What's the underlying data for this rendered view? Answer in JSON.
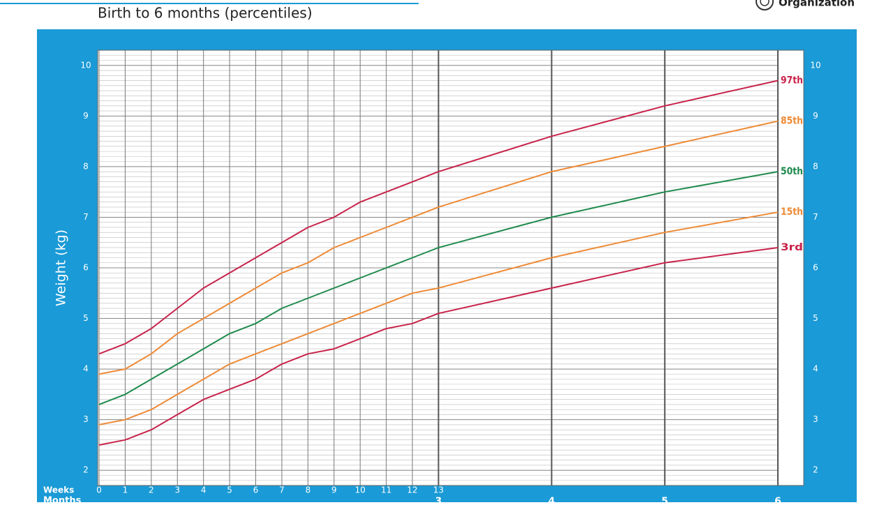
{
  "header": {
    "title": "Birth to 6 months (percentiles)",
    "organization": "Organization"
  },
  "chart_data": {
    "type": "line",
    "ylabel": "Weight (kg)",
    "x_week_label": "Weeks",
    "x_month_label": "Months",
    "x": [
      0,
      1,
      2,
      3,
      4,
      5,
      6,
      7,
      8,
      9,
      10,
      11,
      12,
      13,
      17.333,
      21.667,
      26
    ],
    "xlim": [
      0,
      26
    ],
    "xticks": [
      0,
      1,
      2,
      3,
      4,
      5,
      6,
      7,
      8,
      9,
      10,
      11,
      12,
      13
    ],
    "month_ticks": [
      {
        "value": 13,
        "label": "3"
      },
      {
        "value": 17.333,
        "label": "4"
      },
      {
        "value": 21.667,
        "label": "5"
      },
      {
        "value": 26,
        "label": "6"
      }
    ],
    "ylim": [
      1.7,
      10.3
    ],
    "yticks": [
      2,
      3,
      4,
      5,
      6,
      7,
      8,
      9,
      10
    ],
    "minor_grid_step": 0.1,
    "grid": true,
    "series": [
      {
        "name": "97th",
        "color": "#c8234a",
        "values": [
          4.3,
          4.5,
          4.8,
          5.2,
          5.6,
          5.9,
          6.2,
          6.5,
          6.8,
          7.0,
          7.3,
          7.5,
          7.7,
          7.9,
          8.6,
          9.2,
          9.7
        ]
      },
      {
        "name": "85th",
        "color": "#ee8a35",
        "values": [
          3.9,
          4.0,
          4.3,
          4.7,
          5.0,
          5.3,
          5.6,
          5.9,
          6.1,
          6.4,
          6.6,
          6.8,
          7.0,
          7.2,
          7.9,
          8.4,
          8.9
        ]
      },
      {
        "name": "50th",
        "color": "#1e8a4c",
        "values": [
          3.3,
          3.5,
          3.8,
          4.1,
          4.4,
          4.7,
          4.9,
          5.2,
          5.4,
          5.6,
          5.8,
          6.0,
          6.2,
          6.4,
          7.0,
          7.5,
          7.9
        ]
      },
      {
        "name": "15th",
        "color": "#ee8a35",
        "values": [
          2.9,
          3.0,
          3.2,
          3.5,
          3.8,
          4.1,
          4.3,
          4.5,
          4.7,
          4.9,
          5.1,
          5.3,
          5.5,
          5.6,
          6.2,
          6.7,
          7.1
        ]
      },
      {
        "name": "3rd",
        "color": "#c8234a",
        "values": [
          2.5,
          2.6,
          2.8,
          3.1,
          3.4,
          3.6,
          3.8,
          4.1,
          4.3,
          4.4,
          4.6,
          4.8,
          4.9,
          5.1,
          5.6,
          6.1,
          6.4
        ]
      }
    ]
  }
}
